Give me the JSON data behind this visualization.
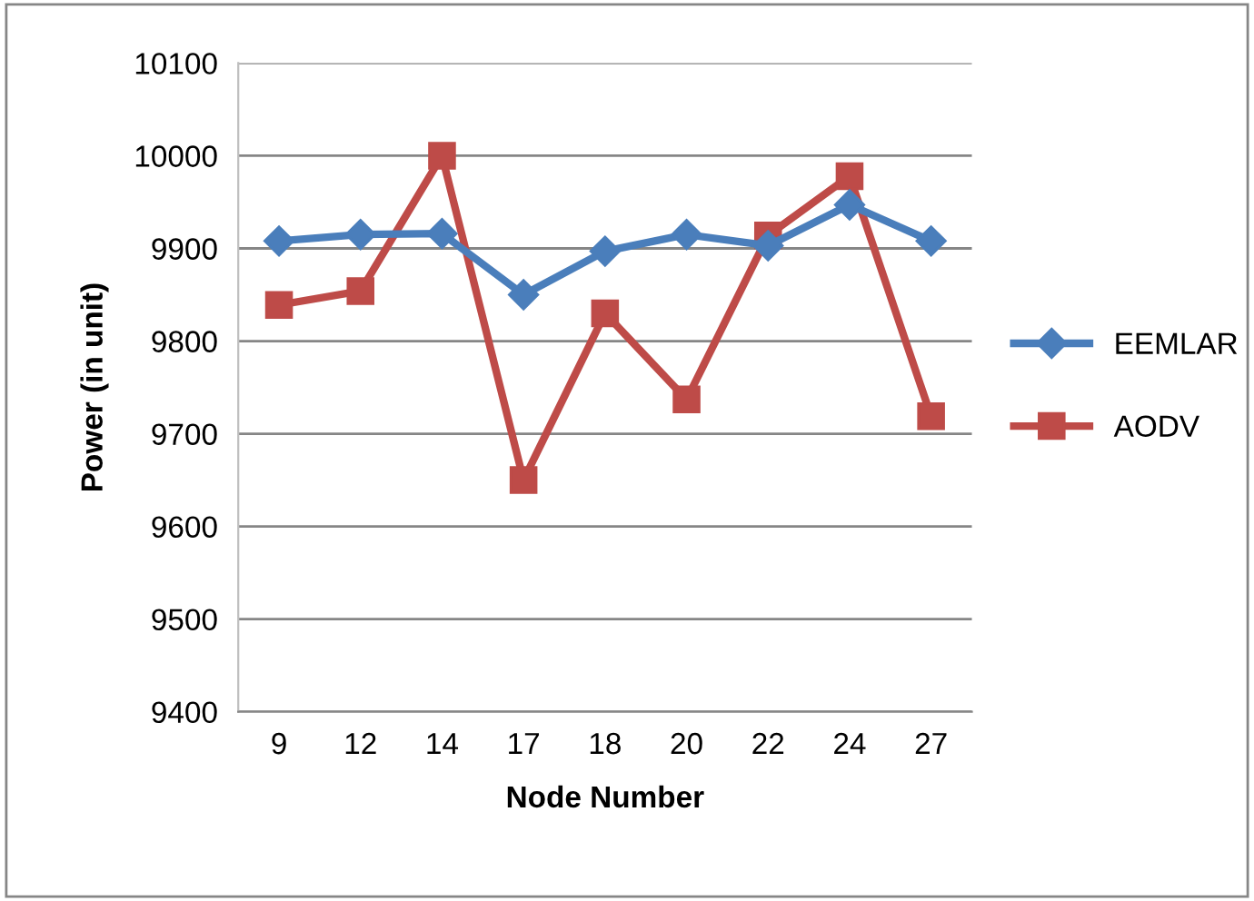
{
  "chart_data": {
    "type": "line",
    "xlabel": "Node Number",
    "ylabel": "Power (in unit)",
    "categories": [
      "9",
      "12",
      "14",
      "17",
      "18",
      "20",
      "22",
      "24",
      "27"
    ],
    "series": [
      {
        "name": "EEMLAR",
        "color": "#4a7ebb",
        "marker": "diamond",
        "values": [
          9908,
          9915,
          9916,
          9850,
          9897,
          9915,
          9903,
          9947,
          9908
        ]
      },
      {
        "name": "AODV",
        "color": "#be4b48",
        "marker": "square",
        "values": [
          9839,
          9854,
          10000,
          9650,
          9830,
          9737,
          9914,
          9978,
          9719
        ]
      }
    ],
    "ylim": [
      9400,
      10100
    ],
    "yticks": [
      9400,
      9500,
      9600,
      9700,
      9800,
      9900,
      10000,
      10100
    ],
    "grid": "y",
    "legend": "right",
    "line_style": "solid"
  }
}
